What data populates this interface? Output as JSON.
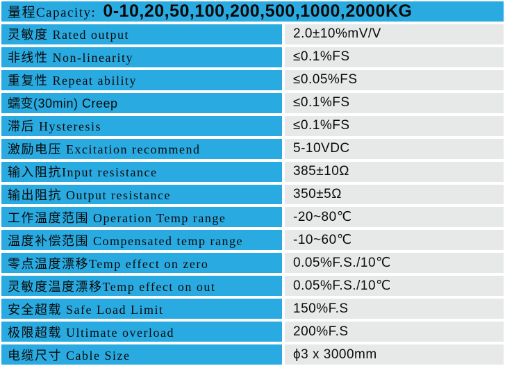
{
  "theme": {
    "header_bg": "#29ABE2",
    "label_bg": "#29ABE2",
    "value_bg": "#E7E8E8",
    "separator": "#FFFFFF",
    "text": "#0A0A0A"
  },
  "header": {
    "label": "量程Capacity:",
    "value": "0-10,20,50,100,200,500,1000,2000KG"
  },
  "rows": [
    {
      "label": "灵敏度 Rated output",
      "value": "2.0±10%mV/V"
    },
    {
      "label": "非线性 Non-linearity",
      "value": "≤0.1%FS"
    },
    {
      "label": "重复性 Repeat ability",
      "value": "≤0.05%FS"
    },
    {
      "label": "蠕变(30min) Creep",
      "value": "≤0.1%FS",
      "latin_sans": true
    },
    {
      "label": "滞后 Hysteresis",
      "value": "≤0.1%FS"
    },
    {
      "label": "激励电压 Excitation recommend",
      "value": "5-10VDC"
    },
    {
      "label": "输入阻抗Input resistance",
      "value": "385±10Ω"
    },
    {
      "label": "输出阻抗 Output resistance",
      "value": "350±5Ω"
    },
    {
      "label": "工作温度范围 Operation Temp range",
      "value": "-20~80℃"
    },
    {
      "label": "温度补偿范围 Compensated temp range",
      "value": "-10~60℃"
    },
    {
      "label": "零点温度漂移Temp effect on zero",
      "value": "0.05%F.S./10℃"
    },
    {
      "label": "灵敏度温度漂移Temp effect on out",
      "value": "0.05%F.S./10℃"
    },
    {
      "label": "安全超载 Safe Load Limit",
      "value": "150%F.S"
    },
    {
      "label": "极限超载 Ultimate overload",
      "value": "200%F.S"
    },
    {
      "label": "电缆尺寸 Cable Size",
      "value": "ϕ3 x 3000mm"
    }
  ]
}
